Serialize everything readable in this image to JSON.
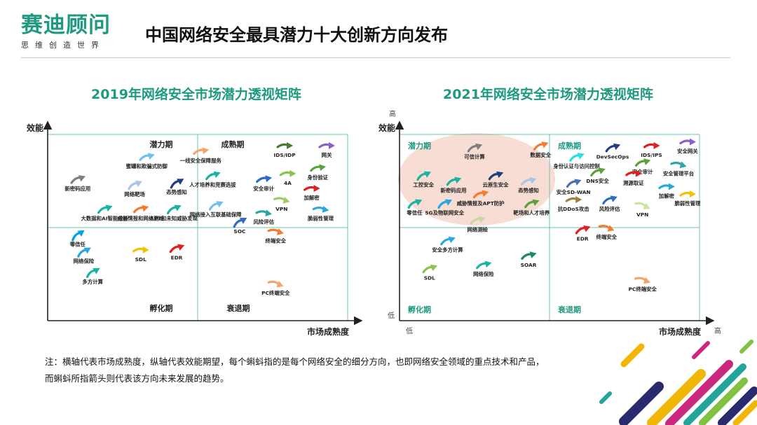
{
  "logo": {
    "name": "赛迪顾问",
    "slogan": "思维创造世界"
  },
  "page_title": "中国网络安全最具潜力十大创新方向发布",
  "note": {
    "line1": "注：横轴代表市场成熟度，纵轴代表效能期望，每个蝌蚪指的是每个网络安全的细分方向，也即网络安全领域的重点技术和产品，",
    "line2": "而蝌蚪所指箭头则代表该方向未来发展的趋势。"
  },
  "colors": {
    "accent": "#1d9a80",
    "axis": "#222222",
    "grid": "#6fc3b0",
    "highlight": "#f7ddd3"
  },
  "chart_data": [
    {
      "type": "scatter",
      "title": "2019年网络安全市场潜力透视矩阵",
      "ylabel": "效能",
      "xlabel": "市场成熟度",
      "xlim": [
        0,
        100
      ],
      "ylim": [
        0,
        100
      ],
      "quadrants": [
        "潜力期",
        "成熟期",
        "孵化期",
        "衰退期"
      ],
      "points": [
        {
          "label": "新密码应用",
          "x": 10,
          "y": 76,
          "color": "#7f7f7f",
          "angle": -20
        },
        {
          "label": "蜜罐和欺骗式防御",
          "x": 33,
          "y": 88,
          "color": "#70c0e8",
          "angle": -15
        },
        {
          "label": "网络靶场",
          "x": 29,
          "y": 73,
          "color": "#a9c4e6",
          "angle": -25
        },
        {
          "label": "态势感知",
          "x": 43,
          "y": 74,
          "color": "#1f3f82",
          "angle": -30
        },
        {
          "label": "大数据和AI智能分析",
          "x": 19,
          "y": 60,
          "color": "#1bb3a1",
          "angle": -20
        },
        {
          "label": "威胁情报和网络测绘",
          "x": 31,
          "y": 60,
          "color": "#f47c2c",
          "angle": -15
        },
        {
          "label": "APT和未知威胁发现",
          "x": 42,
          "y": 60,
          "color": "#1bb3a1",
          "angle": -25
        },
        {
          "label": "一线安全保障服务",
          "x": 51,
          "y": 91,
          "color": "#f4a46a",
          "angle": -10
        },
        {
          "label": "人才培养和竞赛选拔",
          "x": 55,
          "y": 78,
          "color": "#1bb3a1",
          "angle": -20
        },
        {
          "label": "网络接入互联基础保障",
          "x": 56,
          "y": 62,
          "color": "#70c0e8",
          "angle": -25
        },
        {
          "label": "SOC",
          "x": 64,
          "y": 53,
          "color": "#2f6cc1",
          "angle": -30
        },
        {
          "label": "IDS/IDP",
          "x": 79,
          "y": 94,
          "color": "#4a7a36",
          "angle": 0
        },
        {
          "label": "网关",
          "x": 93,
          "y": 94,
          "color": "#8c5fc8",
          "angle": 0
        },
        {
          "label": "身份验证",
          "x": 90,
          "y": 82,
          "color": "#5aa33c",
          "angle": -10
        },
        {
          "label": "安全审计",
          "x": 72,
          "y": 76,
          "color": "#2f6cc1",
          "angle": -10
        },
        {
          "label": "4A",
          "x": 80,
          "y": 79,
          "color": "#8bc34a",
          "angle": 0
        },
        {
          "label": "加解密",
          "x": 88,
          "y": 71,
          "color": "#e02020",
          "angle": 0
        },
        {
          "label": "VPN",
          "x": 78,
          "y": 65,
          "color": "#9ccc65",
          "angle": 15
        },
        {
          "label": "风险评估",
          "x": 72,
          "y": 58,
          "color": "#2aa6a6",
          "angle": 10
        },
        {
          "label": "脆弱性管理",
          "x": 91,
          "y": 60,
          "color": "#29a8e0",
          "angle": 10
        },
        {
          "label": "终端安全",
          "x": 76,
          "y": 48,
          "color": "#f47c2c",
          "angle": 15
        },
        {
          "label": "零信任",
          "x": 10,
          "y": 46,
          "color": "#00a2e8",
          "angle": -35
        },
        {
          "label": "网络保险",
          "x": 12,
          "y": 37,
          "color": "#29a8e0",
          "angle": -30
        },
        {
          "label": "多方计算",
          "x": 15,
          "y": 26,
          "color": "#1bb3a1",
          "angle": -30
        },
        {
          "label": "SDL",
          "x": 31,
          "y": 38,
          "color": "#f2c200",
          "angle": 0
        },
        {
          "label": "EDR",
          "x": 43,
          "y": 39,
          "color": "#e02020",
          "angle": -20
        },
        {
          "label": "PC终端安全",
          "x": 76,
          "y": 20,
          "color": "#f4a46a",
          "angle": 20
        }
      ]
    },
    {
      "type": "scatter",
      "title": "2021年网络安全市场潜力透视矩阵",
      "ylabel": "效能",
      "xlabel": "市场成熟度",
      "x_ticks": [
        "低",
        "高"
      ],
      "y_ticks": [
        "低",
        "高"
      ],
      "xlim": [
        0,
        100
      ],
      "ylim": [
        0,
        100
      ],
      "quadrants": [
        "潜力期",
        "成熟期",
        "孵化期",
        "衰退期"
      ],
      "points": [
        {
          "label": "可信计算",
          "x": 25,
          "y": 93,
          "color": "#7f7f7f",
          "angle": -20
        },
        {
          "label": "工控安全",
          "x": 8,
          "y": 78,
          "color": "#1bb3a1",
          "angle": -25
        },
        {
          "label": "新密码应用",
          "x": 18,
          "y": 75,
          "color": "#1bb3a1",
          "angle": -20
        },
        {
          "label": "云原生安全",
          "x": 32,
          "y": 78,
          "color": "#1f3f82",
          "angle": -20
        },
        {
          "label": "态势感知",
          "x": 43,
          "y": 75,
          "color": "#a9c4e6",
          "angle": -15
        },
        {
          "label": "数据安全",
          "x": 47,
          "y": 94,
          "color": "#f47c2c",
          "angle": -20
        },
        {
          "label": "零信任",
          "x": 5,
          "y": 63,
          "color": "#1bb3a1",
          "angle": -25
        },
        {
          "label": "5G及物联网安全",
          "x": 15,
          "y": 63,
          "color": "#29a8e0",
          "angle": -25
        },
        {
          "label": "威胁情报及APT防护",
          "x": 27,
          "y": 68,
          "color": "#f47c2c",
          "angle": -15
        },
        {
          "label": "靶场和人才培养",
          "x": 44,
          "y": 63,
          "color": "#5aa33c",
          "angle": -20
        },
        {
          "label": "网络测绘",
          "x": 26,
          "y": 54,
          "color": "#c8d6a8",
          "angle": -15
        },
        {
          "label": "DevSecOps",
          "x": 71,
          "y": 93,
          "color": "#1f3f82",
          "angle": -20
        },
        {
          "label": "IDS/IPS",
          "x": 84,
          "y": 94,
          "color": "#e02020",
          "angle": 0
        },
        {
          "label": "安全网关",
          "x": 96,
          "y": 96,
          "color": "#8c5fc8",
          "angle": 0
        },
        {
          "label": "身份认证与访问控制",
          "x": 59,
          "y": 88,
          "color": "#29e0e0",
          "angle": -20
        },
        {
          "label": "安全审计",
          "x": 81,
          "y": 85,
          "color": "#5aa33c",
          "angle": -15
        },
        {
          "label": "安全管理平台",
          "x": 93,
          "y": 84,
          "color": "#2aa6a6",
          "angle": 15
        },
        {
          "label": "DNS安全",
          "x": 66,
          "y": 80,
          "color": "#5aa33c",
          "angle": -20
        },
        {
          "label": "安全SD-WAN",
          "x": 58,
          "y": 74,
          "color": "#4a6fb5",
          "angle": -20
        },
        {
          "label": "溯源取证",
          "x": 78,
          "y": 79,
          "color": "#e02020",
          "angle": 0
        },
        {
          "label": "加解密",
          "x": 89,
          "y": 72,
          "color": "#29a8e0",
          "angle": 0
        },
        {
          "label": "脆弱性管理",
          "x": 96,
          "y": 68,
          "color": "#f2c200",
          "angle": 0
        },
        {
          "label": "抗DDoS攻击",
          "x": 58,
          "y": 65,
          "color": "#a0803c",
          "angle": 0
        },
        {
          "label": "风险评估",
          "x": 70,
          "y": 65,
          "color": "#2f6cc1",
          "angle": -20
        },
        {
          "label": "VPN",
          "x": 81,
          "y": 62,
          "color": "#c8e6a0",
          "angle": 25
        },
        {
          "label": "终端安全",
          "x": 69,
          "y": 50,
          "color": "#f47c2c",
          "angle": 20
        },
        {
          "label": "安全多方计算",
          "x": 16,
          "y": 43,
          "color": "#29a8e0",
          "angle": -20
        },
        {
          "label": "SOAR",
          "x": 43,
          "y": 35,
          "color": "#1b8a6b",
          "angle": -15
        },
        {
          "label": "EDR",
          "x": 61,
          "y": 49,
          "color": "#e02020",
          "angle": -20
        },
        {
          "label": "SDL",
          "x": 10,
          "y": 28,
          "color": "#8bc34a",
          "angle": -20
        },
        {
          "label": "网络保险",
          "x": 28,
          "y": 30,
          "color": "#1bb3a1",
          "angle": -15
        },
        {
          "label": "PC终端安全",
          "x": 81,
          "y": 22,
          "color": "#f4a46a",
          "angle": 20
        }
      ]
    }
  ]
}
